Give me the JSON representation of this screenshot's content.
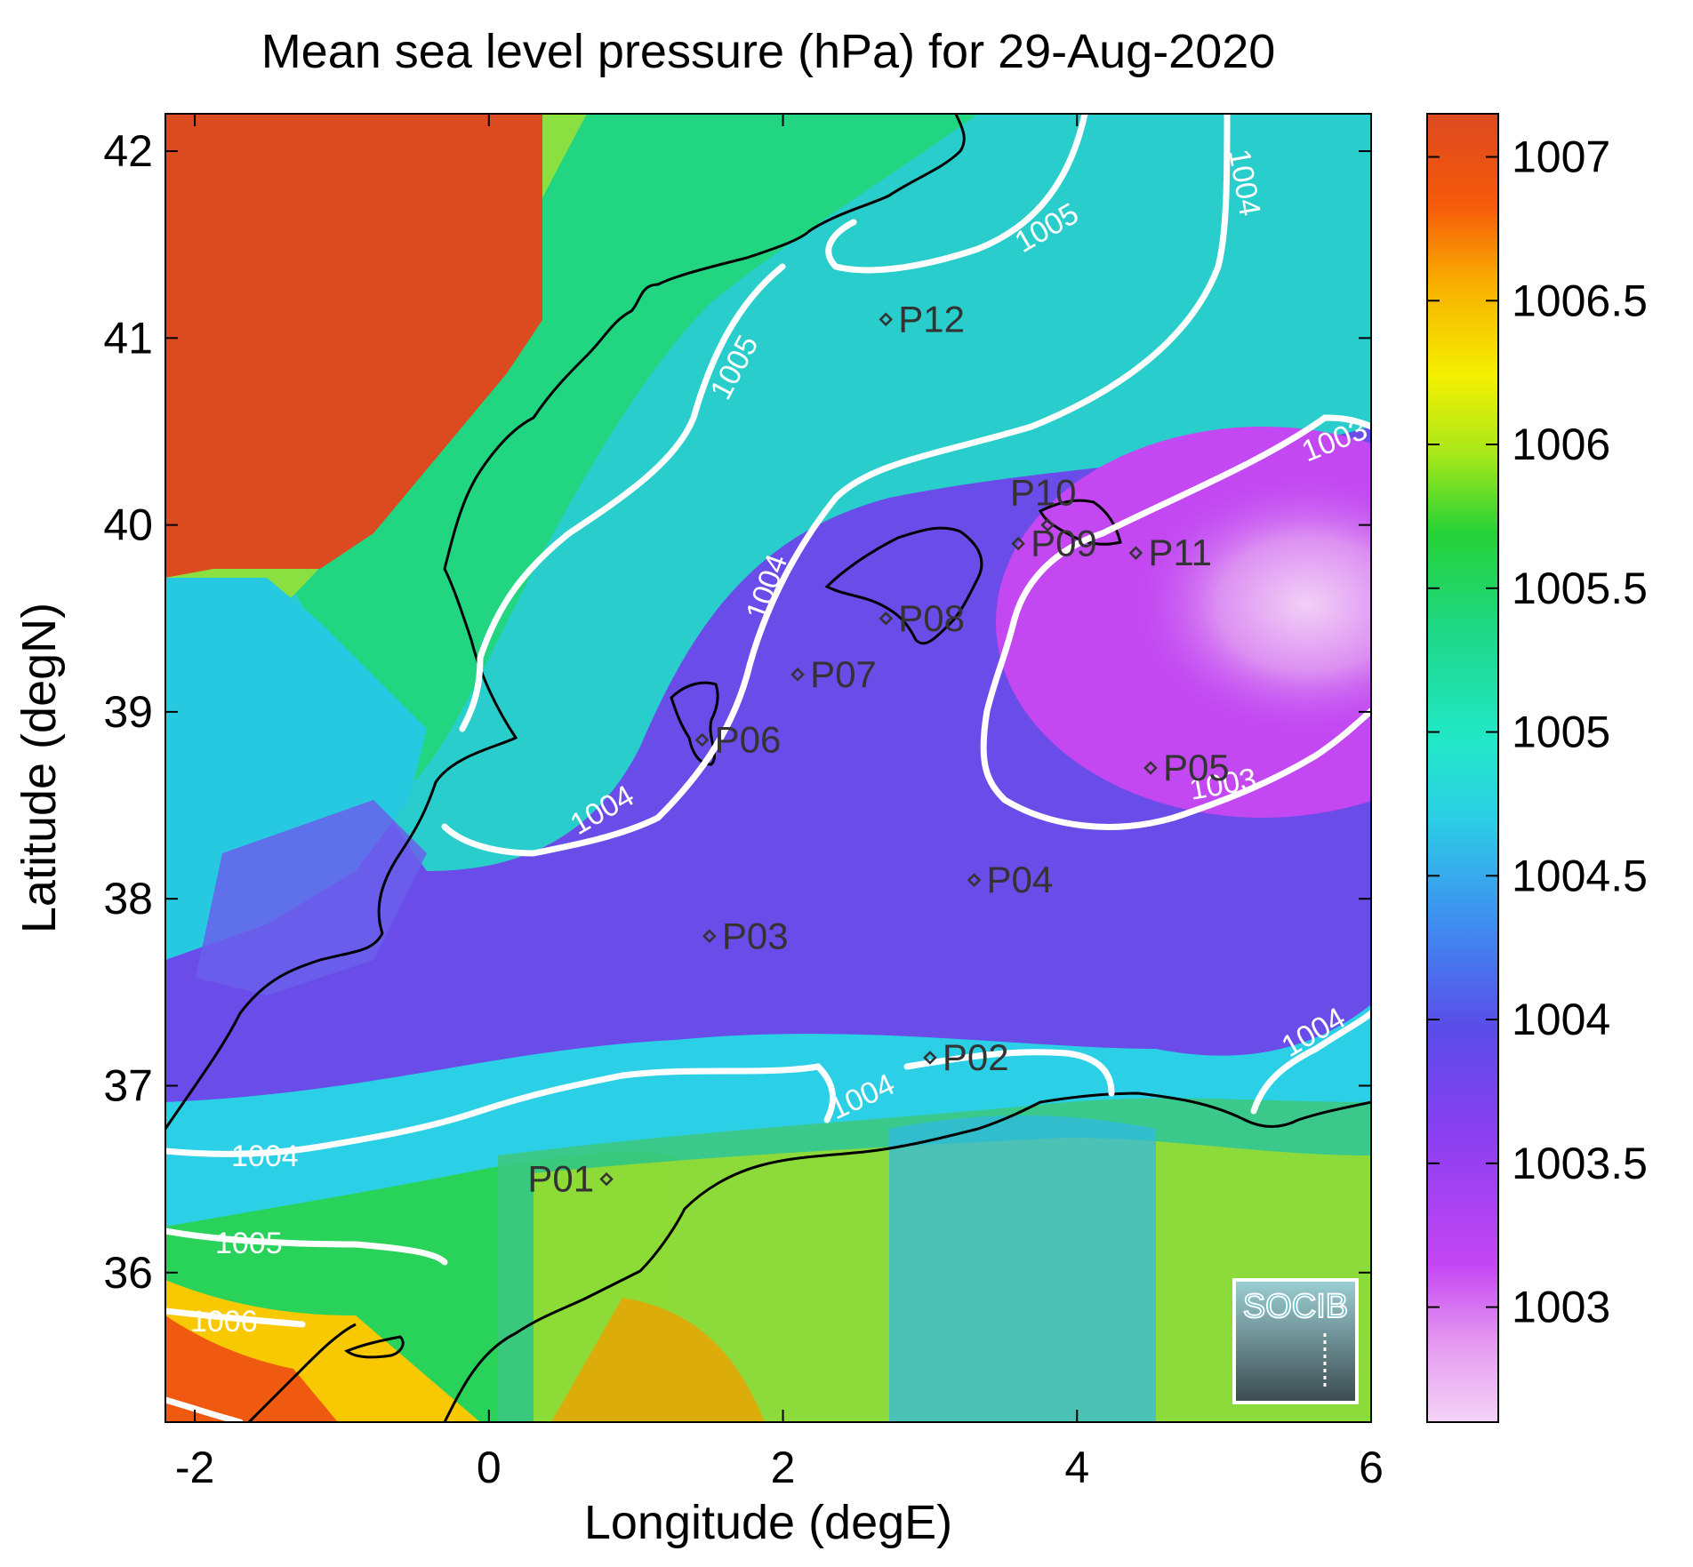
{
  "chart_data": {
    "type": "heatmap",
    "title": "Mean sea level pressure (hPa) for 29-Aug-2020",
    "xlabel": "Longitude (degE)",
    "ylabel": "Latitude (degN)",
    "xlim": [
      -2.2,
      6.0
    ],
    "ylim": [
      35.2,
      42.2
    ],
    "x_ticks": [
      "-2",
      "0",
      "2",
      "4",
      "6"
    ],
    "y_ticks": [
      "36",
      "37",
      "38",
      "39",
      "40",
      "41",
      "42"
    ],
    "colorbar": {
      "range": [
        1002.6,
        1007.15
      ],
      "ticks": [
        "1003",
        "1003.5",
        "1004",
        "1004.5",
        "1005",
        "1005.5",
        "1006",
        "1006.5",
        "1007"
      ]
    },
    "contour_labels": [
      "1003",
      "1003",
      "1003",
      "1004",
      "1004",
      "1004",
      "1004",
      "1004",
      "1004",
      "1004",
      "1005",
      "1005",
      "1005",
      "1006"
    ],
    "stations": [
      {
        "label": "P01",
        "lon": 0.8,
        "lat": 36.5
      },
      {
        "label": "P02",
        "lon": 3.0,
        "lat": 37.15
      },
      {
        "label": "P03",
        "lon": 1.5,
        "lat": 37.8
      },
      {
        "label": "P04",
        "lon": 3.3,
        "lat": 38.1
      },
      {
        "label": "P05",
        "lon": 4.5,
        "lat": 38.7
      },
      {
        "label": "P06",
        "lon": 1.45,
        "lat": 38.85
      },
      {
        "label": "P07",
        "lon": 2.1,
        "lat": 39.2
      },
      {
        "label": "P08",
        "lon": 2.7,
        "lat": 39.5
      },
      {
        "label": "P09",
        "lon": 3.6,
        "lat": 39.9
      },
      {
        "label": "P10",
        "lon": 3.8,
        "lat": 40.0
      },
      {
        "label": "P11",
        "lon": 4.4,
        "lat": 39.85
      },
      {
        "label": "P12",
        "lon": 2.7,
        "lat": 41.1
      }
    ]
  },
  "logo_text": "SOCIB"
}
